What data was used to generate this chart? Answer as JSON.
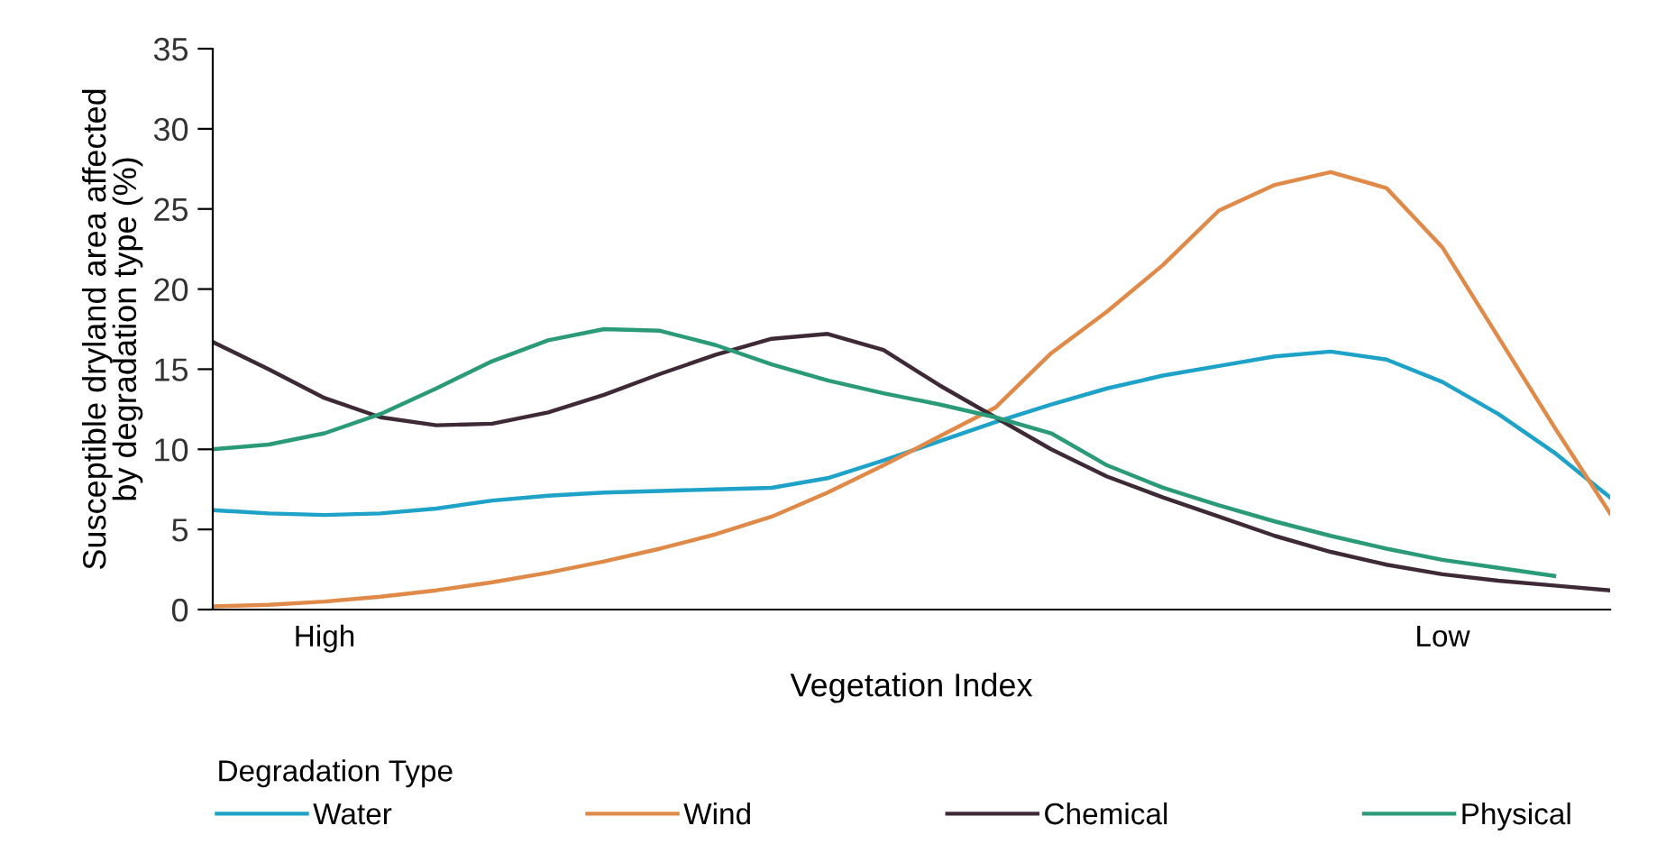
{
  "chart_data": {
    "type": "line",
    "xlabel": "Vegetation Index",
    "ylabel": "Susceptible dryland area affected\nby degradation type (%)",
    "legend_title": "Degradation Type",
    "legend": "bottom",
    "grid": false,
    "marker": "none",
    "line_style": "solid",
    "categories": [
      null,
      null,
      "High",
      null,
      null,
      null,
      null,
      null,
      null,
      null,
      null,
      null,
      null,
      null,
      null,
      null,
      null,
      null,
      null,
      null,
      null,
      null,
      "Low",
      null,
      null,
      null
    ],
    "ylim": [
      0,
      35
    ],
    "yticks": [
      0,
      5,
      10,
      15,
      20,
      25,
      30,
      35
    ],
    "series": [
      {
        "name": "Water",
        "color": "#1ea2c8",
        "values": [
          6.2,
          6.0,
          5.9,
          6.0,
          6.3,
          6.8,
          7.1,
          7.3,
          7.4,
          7.5,
          7.6,
          8.2,
          9.3,
          10.5,
          11.7,
          12.8,
          13.8,
          14.6,
          15.2,
          15.8,
          16.1,
          15.6,
          14.2,
          12.2,
          9.8,
          7.0
        ]
      },
      {
        "name": "Wind",
        "color": "#e08a4a",
        "values": [
          0.2,
          0.3,
          0.5,
          0.8,
          1.2,
          1.7,
          2.3,
          3.0,
          3.8,
          4.7,
          5.8,
          7.3,
          9.0,
          10.8,
          12.6,
          16.0,
          18.6,
          21.5,
          24.9,
          26.5,
          27.3,
          26.3,
          22.6,
          17.0,
          11.4,
          6.0
        ]
      },
      {
        "name": "Chemical",
        "color": "#3e2a36",
        "values": [
          16.7,
          15.0,
          13.2,
          12.0,
          11.5,
          11.6,
          12.3,
          13.4,
          14.7,
          15.9,
          16.9,
          17.2,
          16.2,
          14.0,
          12.0,
          10.0,
          8.3,
          7.0,
          5.8,
          4.6,
          3.6,
          2.8,
          2.2,
          1.8,
          1.5,
          1.2
        ]
      },
      {
        "name": "Physical",
        "color": "#2a9a78",
        "values": [
          10.0,
          10.3,
          11.0,
          12.2,
          13.8,
          15.5,
          16.8,
          17.5,
          17.4,
          16.5,
          15.3,
          14.3,
          13.5,
          12.8,
          12.0,
          11.0,
          9.0,
          7.6,
          6.5,
          5.5,
          4.6,
          3.8,
          3.1,
          2.6,
          2.1,
          null
        ]
      }
    ]
  }
}
